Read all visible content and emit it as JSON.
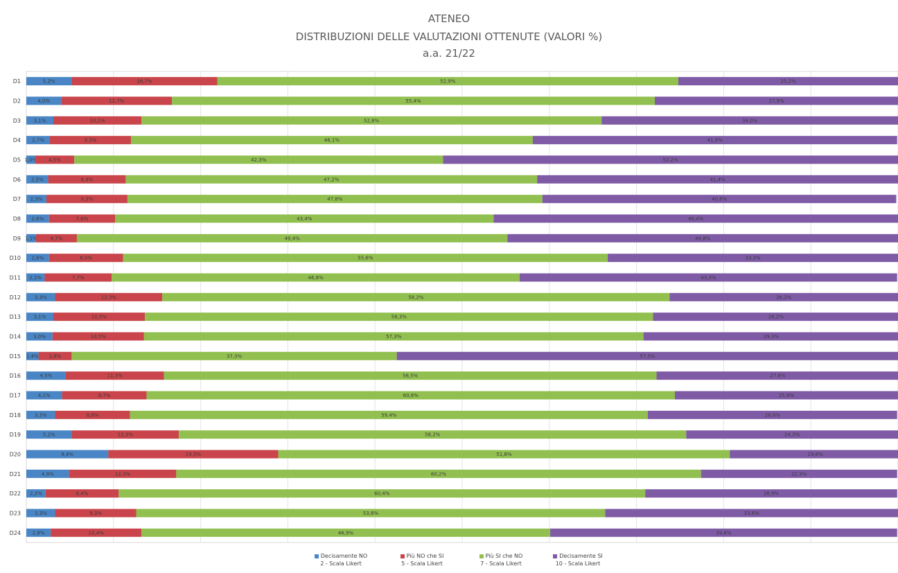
{
  "title": {
    "line1": "ATENEO",
    "line2": "DISTRIBUZIONI DELLE VALUTAZIONI OTTENUTE (VALORI %)",
    "line3": "a.a. 21/22"
  },
  "chart_data": {
    "type": "bar",
    "orientation": "horizontal",
    "stacked": "100%",
    "categories": [
      "D1",
      "D2",
      "D3",
      "D4",
      "D5",
      "D6",
      "D7",
      "D8",
      "D9",
      "D10",
      "D11",
      "D12",
      "D13",
      "D14",
      "D15",
      "D16",
      "D17",
      "D18",
      "D19",
      "D20",
      "D21",
      "D22",
      "D23",
      "D24"
    ],
    "series": [
      {
        "name": "Decisamente NO",
        "scale": "2 - Scala Likert",
        "color": "#4a86c5",
        "values": [
          5.2,
          4.0,
          3.1,
          2.7,
          1.0,
          2.5,
          2.3,
          2.6,
          1.1,
          2.6,
          2.1,
          3.3,
          3.1,
          3.0,
          1.4,
          4.5,
          4.1,
          3.3,
          5.2,
          9.4,
          4.9,
          2.2,
          3.3,
          2.8
        ]
      },
      {
        "name": "Più NO che SI",
        "scale": "5 - Scala Likert",
        "color": "#c9454b",
        "values": [
          16.7,
          12.7,
          10.1,
          9.3,
          4.5,
          8.9,
          9.3,
          7.6,
          4.7,
          8.5,
          7.7,
          12.3,
          10.5,
          10.5,
          3.8,
          11.3,
          9.7,
          8.6,
          12.3,
          19.5,
          12.3,
          8.4,
          9.3,
          10.4
        ]
      },
      {
        "name": "Più SI che NO",
        "scale": "7 - Scala Likert",
        "color": "#92c050",
        "values": [
          52.9,
          55.4,
          52.8,
          46.1,
          42.3,
          47.2,
          47.6,
          43.4,
          49.4,
          55.6,
          46.8,
          58.2,
          58.3,
          57.3,
          37.3,
          56.5,
          60.6,
          59.4,
          58.2,
          51.8,
          60.2,
          60.4,
          53.8,
          46.9
        ]
      },
      {
        "name": "Decisamente SI",
        "scale": "10 - Scala Likert",
        "color": "#7f5ba6",
        "values": [
          25.2,
          27.9,
          34.0,
          41.8,
          52.2,
          41.4,
          40.6,
          46.4,
          44.8,
          33.3,
          43.3,
          26.2,
          28.2,
          29.3,
          57.5,
          27.8,
          25.6,
          28.6,
          24.3,
          19.6,
          22.5,
          28.9,
          33.6,
          39.8
        ]
      }
    ],
    "xlim": [
      0,
      100
    ],
    "grid": true,
    "legend": "bottom"
  }
}
